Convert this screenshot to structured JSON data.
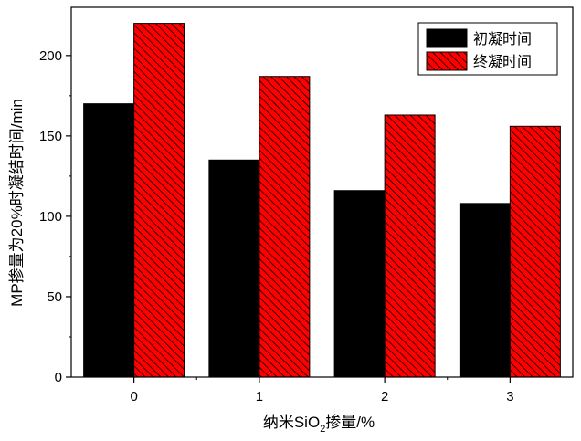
{
  "chart_data": {
    "type": "bar",
    "categories": [
      "0",
      "1",
      "2",
      "3"
    ],
    "series": [
      {
        "name": "初凝时间",
        "values": [
          170,
          135,
          116,
          108
        ],
        "color": "#000000",
        "pattern": "solid"
      },
      {
        "name": "终凝时间",
        "values": [
          220,
          187,
          163,
          156
        ],
        "color": "#ff0000",
        "pattern": "diagonal-hatch"
      }
    ],
    "xlabel_parts": {
      "pre": "纳米SiO",
      "sub": "2",
      "post": "掺量/%"
    },
    "ylabel": "MP掺量为20%时凝结时间/min",
    "ylim": [
      0,
      230
    ],
    "yticks": [
      0,
      50,
      100,
      150,
      200
    ],
    "grid": false,
    "legend_position": "top-right"
  }
}
